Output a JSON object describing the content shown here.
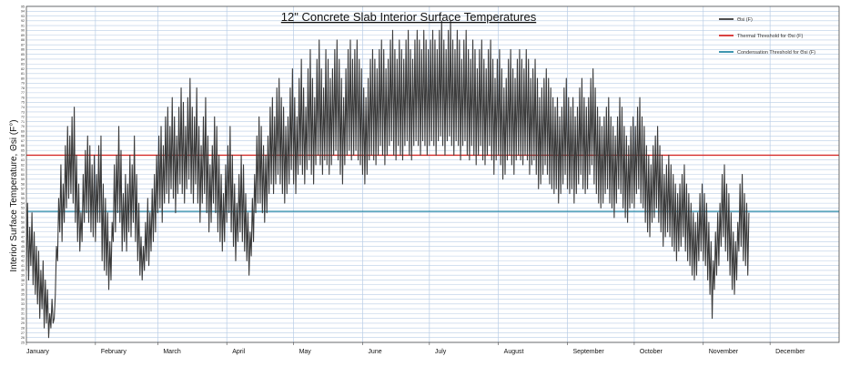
{
  "chart_data": {
    "type": "line",
    "title": "12\" Concrete Slab Interior Surface Temperatures",
    "xlabel": "",
    "ylabel": "Interior Surface Temperature, Θsi (F°)",
    "months": [
      "January",
      "February",
      "March",
      "April",
      "May",
      "June",
      "July",
      "August",
      "September",
      "October",
      "November",
      "December"
    ],
    "ylim": [
      25,
      95
    ],
    "ytick_step": 1,
    "grid": true,
    "legend_position": "top-right",
    "series": [
      {
        "name": "Θsi (F)",
        "color": "#3a3a3a",
        "x_unit": "day of year",
        "daily_max": [
          54,
          49,
          52,
          48,
          45,
          44,
          40,
          42,
          38,
          36,
          31,
          34,
          30,
          45,
          55,
          62,
          58,
          66,
          70,
          68,
          72,
          74,
          64,
          58,
          52,
          60,
          65,
          68,
          66,
          62,
          64,
          60,
          66,
          68,
          58,
          55,
          52,
          46,
          50,
          62,
          64,
          70,
          65,
          56,
          60,
          58,
          64,
          62,
          68,
          60,
          54,
          47,
          45,
          50,
          55,
          52,
          57,
          60,
          64,
          68,
          70,
          66,
          72,
          74,
          70,
          76,
          72,
          68,
          74,
          78,
          75,
          70,
          76,
          80,
          74,
          72,
          78,
          70,
          66,
          72,
          76,
          68,
          62,
          66,
          72,
          70,
          64,
          60,
          56,
          62,
          66,
          70,
          64,
          58,
          54,
          60,
          64,
          62,
          56,
          52,
          48,
          55,
          60,
          68,
          72,
          70,
          66,
          64,
          68,
          74,
          76,
          72,
          78,
          80,
          76,
          74,
          70,
          72,
          78,
          82,
          76,
          72,
          80,
          84,
          78,
          74,
          82,
          86,
          80,
          76,
          84,
          88,
          82,
          78,
          86,
          84,
          80,
          82,
          86,
          88,
          84,
          80,
          76,
          82,
          86,
          88,
          84,
          86,
          88,
          84,
          82,
          78,
          76,
          80,
          84,
          86,
          84,
          82,
          86,
          88,
          86,
          82,
          84,
          88,
          90,
          86,
          84,
          88,
          86,
          84,
          88,
          90,
          86,
          84,
          88,
          90,
          88,
          86,
          90,
          88,
          86,
          88,
          90,
          88,
          86,
          90,
          92,
          88,
          86,
          90,
          92,
          88,
          86,
          90,
          88,
          84,
          88,
          90,
          86,
          84,
          88,
          86,
          82,
          86,
          88,
          84,
          82,
          86,
          88,
          84,
          80,
          84,
          86,
          82,
          78,
          80,
          84,
          86,
          82,
          80,
          84,
          86,
          84,
          82,
          86,
          84,
          80,
          82,
          84,
          80,
          76,
          78,
          80,
          82,
          80,
          78,
          76,
          74,
          76,
          72,
          74,
          78,
          80,
          76,
          74,
          76,
          72,
          74,
          78,
          80,
          76,
          74,
          76,
          80,
          82,
          78,
          74,
          72,
          70,
          72,
          74,
          76,
          72,
          70,
          68,
          72,
          76,
          74,
          70,
          68,
          66,
          70,
          72,
          70,
          74,
          76,
          72,
          70,
          66,
          64,
          62,
          66,
          68,
          70,
          66,
          64,
          60,
          62,
          64,
          62,
          60,
          58,
          56,
          58,
          60,
          62,
          58,
          56,
          54,
          52,
          50,
          52,
          56,
          58,
          56,
          54,
          50,
          46,
          42,
          48,
          52,
          54,
          60,
          62,
          58,
          56,
          52,
          48,
          46,
          50,
          58,
          60,
          56,
          54,
          52
        ],
        "daily_min": [
          40,
          38,
          41,
          37,
          35,
          33,
          30,
          32,
          28,
          29,
          26,
          28,
          29,
          35,
          42,
          48,
          46,
          50,
          53,
          55,
          56,
          54,
          50,
          46,
          44,
          46,
          50,
          52,
          50,
          48,
          47,
          46,
          50,
          50,
          42,
          40,
          39,
          36,
          38,
          46,
          48,
          52,
          50,
          44,
          46,
          44,
          48,
          47,
          50,
          46,
          42,
          39,
          38,
          40,
          42,
          41,
          44,
          46,
          48,
          52,
          53,
          50,
          54,
          56,
          54,
          57,
          55,
          52,
          56,
          58,
          56,
          54,
          57,
          59,
          56,
          54,
          58,
          54,
          50,
          54,
          56,
          52,
          48,
          50,
          54,
          52,
          48,
          46,
          44,
          46,
          50,
          52,
          48,
          45,
          42,
          46,
          48,
          46,
          44,
          42,
          39,
          43,
          46,
          52,
          54,
          54,
          52,
          50,
          52,
          56,
          58,
          56,
          58,
          60,
          58,
          56,
          54,
          56,
          58,
          61,
          58,
          56,
          60,
          62,
          60,
          58,
          61,
          63,
          60,
          58,
          62,
          64,
          62,
          60,
          63,
          62,
          60,
          62,
          64,
          65,
          63,
          60,
          58,
          62,
          64,
          65,
          63,
          64,
          65,
          63,
          62,
          60,
          58,
          60,
          63,
          64,
          63,
          62,
          64,
          66,
          64,
          62,
          64,
          66,
          67,
          64,
          63,
          66,
          64,
          63,
          66,
          67,
          64,
          63,
          66,
          67,
          66,
          64,
          67,
          66,
          64,
          66,
          67,
          66,
          64,
          67,
          68,
          66,
          64,
          67,
          68,
          66,
          64,
          67,
          66,
          63,
          66,
          67,
          64,
          63,
          66,
          64,
          62,
          64,
          66,
          63,
          62,
          64,
          66,
          63,
          60,
          63,
          64,
          62,
          59,
          60,
          63,
          64,
          62,
          60,
          63,
          64,
          63,
          62,
          64,
          63,
          60,
          62,
          63,
          60,
          57,
          58,
          60,
          62,
          60,
          58,
          57,
          56,
          57,
          54,
          56,
          58,
          60,
          57,
          56,
          57,
          54,
          56,
          58,
          60,
          57,
          56,
          57,
          60,
          62,
          58,
          56,
          54,
          53,
          54,
          56,
          57,
          54,
          53,
          51,
          54,
          57,
          56,
          53,
          51,
          50,
          53,
          54,
          53,
          56,
          57,
          54,
          53,
          50,
          48,
          47,
          50,
          51,
          53,
          50,
          48,
          45,
          47,
          48,
          47,
          45,
          44,
          42,
          44,
          45,
          47,
          44,
          42,
          41,
          39,
          38,
          39,
          42,
          44,
          42,
          41,
          38,
          35,
          30,
          36,
          39,
          41,
          45,
          47,
          44,
          42,
          39,
          36,
          35,
          38,
          44,
          45,
          42,
          41,
          39
        ]
      },
      {
        "name": "Thermal Threshold for Θsi (F)",
        "color": "#d62d2d",
        "value": 64
      },
      {
        "name": "Condensation Threshold for Θsi (F)",
        "color": "#2a8aa8",
        "value": 52.3
      }
    ]
  }
}
